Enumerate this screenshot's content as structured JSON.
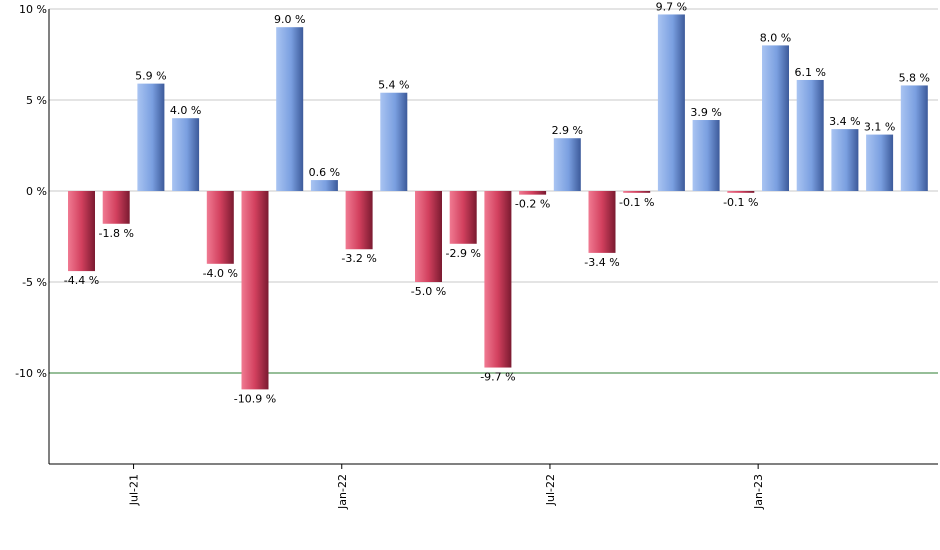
{
  "chart_data": {
    "type": "bar",
    "title": "",
    "xlabel": "",
    "ylabel": "",
    "ylim": [
      -15,
      10
    ],
    "y_ticks": [
      10,
      5,
      0,
      -5,
      -10
    ],
    "y_tick_labels": [
      "10 %",
      "5 %",
      "0 %",
      "-5 %",
      "-10 %"
    ],
    "x_tick_labels": [
      "Jul-21",
      "Jan-22",
      "Jul-22",
      "Jan-23"
    ],
    "x_tick_positions": [
      1.5,
      7.5,
      13.5,
      19.5
    ],
    "grid": true,
    "reference_line": -10,
    "values": [
      -4.4,
      -1.8,
      5.9,
      4.0,
      -4.0,
      -10.9,
      9.0,
      0.6,
      -3.2,
      5.4,
      -5.0,
      -2.9,
      -9.7,
      -0.2,
      2.9,
      -3.4,
      -0.1,
      9.7,
      3.9,
      -0.1,
      8.0,
      6.1,
      3.4,
      3.1,
      5.8
    ],
    "labels": [
      "-4.4 %",
      "-1.8 %",
      "5.9 %",
      "4.0 %",
      "-4.0 %",
      "-10.9 %",
      "9.0 %",
      "0.6 %",
      "-3.2 %",
      "5.4 %",
      "-5.0 %",
      "-2.9 %",
      "-9.7 %",
      "-0.2 %",
      "2.9 %",
      "-3.4 %",
      "-0.1 %",
      "9.7 %",
      "3.9 %",
      "-0.1 %",
      "8.0 %",
      "6.1 %",
      "3.4 %",
      "3.1 %",
      "5.8 %"
    ]
  },
  "colors": {
    "positive": "#6f95d8",
    "negative": "#c83a56",
    "reference_line": "#2e7d32",
    "grid": "#c8c8c8",
    "axis": "#000000"
  }
}
